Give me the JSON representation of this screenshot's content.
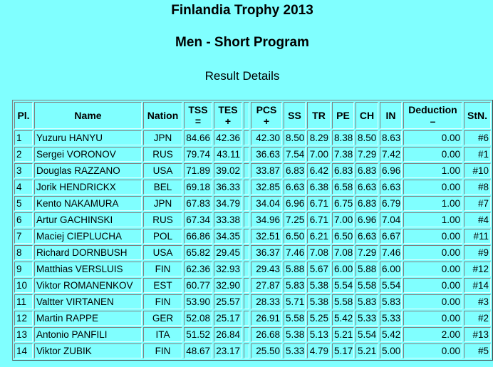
{
  "header": {
    "title": "Finlandia Trophy 2013",
    "subtitle": "Men - Short Program",
    "section": "Result Details"
  },
  "table": {
    "headers": [
      "Pl.",
      "Name",
      "Nation",
      {
        "text": "TSS",
        "sub": "="
      },
      {
        "text": "TES",
        "sub": "+"
      },
      {
        "text": "PCS",
        "sub": "+"
      },
      "SS",
      "TR",
      "PE",
      "CH",
      "IN",
      {
        "text": "Deduction",
        "sub": "–"
      },
      "StN."
    ],
    "rows": [
      [
        "1",
        "Yuzuru HANYU",
        "JPN",
        "84.66",
        "42.36",
        "42.30",
        "8.50",
        "8.29",
        "8.38",
        "8.50",
        "8.63",
        "0.00",
        "#6"
      ],
      [
        "2",
        "Sergei VORONOV",
        "RUS",
        "79.74",
        "43.11",
        "36.63",
        "7.54",
        "7.00",
        "7.38",
        "7.29",
        "7.42",
        "0.00",
        "#1"
      ],
      [
        "3",
        "Douglas RAZZANO",
        "USA",
        "71.89",
        "39.02",
        "33.87",
        "6.83",
        "6.42",
        "6.83",
        "6.83",
        "6.96",
        "1.00",
        "#10"
      ],
      [
        "4",
        "Jorik HENDRICKX",
        "BEL",
        "69.18",
        "36.33",
        "32.85",
        "6.63",
        "6.38",
        "6.58",
        "6.63",
        "6.63",
        "0.00",
        "#8"
      ],
      [
        "5",
        "Kento NAKAMURA",
        "JPN",
        "67.83",
        "34.79",
        "34.04",
        "6.96",
        "6.71",
        "6.75",
        "6.83",
        "6.79",
        "1.00",
        "#7"
      ],
      [
        "6",
        "Artur GACHINSKI",
        "RUS",
        "67.34",
        "33.38",
        "34.96",
        "7.25",
        "6.71",
        "7.00",
        "6.96",
        "7.04",
        "1.00",
        "#4"
      ],
      [
        "7",
        "Maciej CIEPLUCHA",
        "POL",
        "66.86",
        "34.35",
        "32.51",
        "6.50",
        "6.21",
        "6.50",
        "6.63",
        "6.67",
        "0.00",
        "#11"
      ],
      [
        "8",
        "Richard DORNBUSH",
        "USA",
        "65.82",
        "29.45",
        "36.37",
        "7.46",
        "7.08",
        "7.08",
        "7.29",
        "7.46",
        "0.00",
        "#9"
      ],
      [
        "9",
        "Matthias VERSLUIS",
        "FIN",
        "62.36",
        "32.93",
        "29.43",
        "5.88",
        "5.67",
        "6.00",
        "5.88",
        "6.00",
        "0.00",
        "#12"
      ],
      [
        "10",
        "Viktor ROMANENKOV",
        "EST",
        "60.77",
        "32.90",
        "27.87",
        "5.83",
        "5.38",
        "5.54",
        "5.58",
        "5.54",
        "0.00",
        "#14"
      ],
      [
        "11",
        "Valtter VIRTANEN",
        "FIN",
        "53.90",
        "25.57",
        "28.33",
        "5.71",
        "5.38",
        "5.58",
        "5.83",
        "5.83",
        "0.00",
        "#3"
      ],
      [
        "12",
        "Martin RAPPE",
        "GER",
        "52.08",
        "25.17",
        "26.91",
        "5.58",
        "5.25",
        "5.42",
        "5.33",
        "5.33",
        "0.00",
        "#2"
      ],
      [
        "13",
        "Antonio PANFILI",
        "ITA",
        "51.52",
        "26.84",
        "26.68",
        "5.38",
        "5.13",
        "5.21",
        "5.54",
        "5.42",
        "2.00",
        "#13"
      ],
      [
        "14",
        "Viktor ZUBIK",
        "FIN",
        "48.67",
        "23.17",
        "25.50",
        "5.33",
        "4.79",
        "5.17",
        "5.21",
        "5.00",
        "0.00",
        "#5"
      ]
    ]
  }
}
